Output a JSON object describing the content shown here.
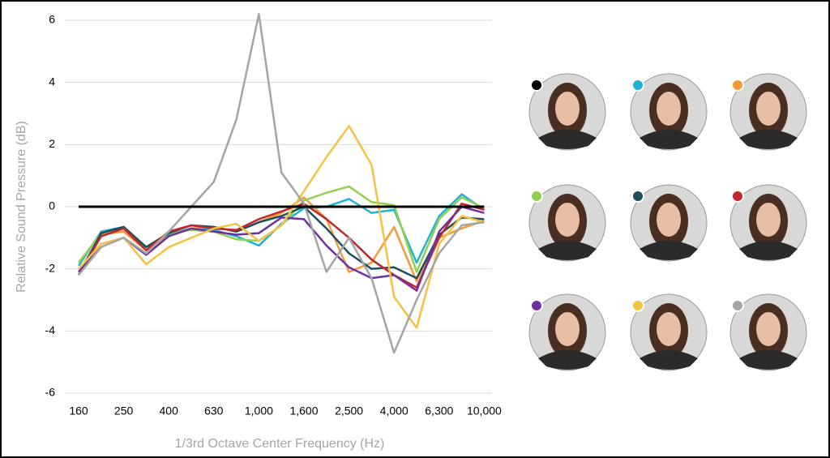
{
  "chart_data": {
    "type": "line",
    "y_label": "Relative Sound Pressure (dB)",
    "x_label": "1/3rd Octave Center Frequency (Hz)",
    "categories": [
      "160",
      null,
      "250",
      null,
      "400",
      null,
      "630",
      null,
      "1,000",
      null,
      "1,600",
      null,
      "2,500",
      null,
      "4,000",
      null,
      "6,300",
      null,
      "10,000"
    ],
    "ylim": [
      -6,
      6
    ],
    "yticks": [
      6,
      4,
      2,
      0,
      -2,
      -4,
      -6
    ],
    "grid": true,
    "series": [
      {
        "color": "#000000",
        "values": [
          0,
          0,
          0,
          0,
          0,
          0,
          0,
          0,
          0,
          0,
          0,
          0,
          0,
          0,
          0,
          0,
          0,
          0,
          0
        ]
      },
      {
        "color": "#1fb3d8",
        "values": [
          -1.9,
          -0.8,
          -0.65,
          -1.3,
          -0.9,
          -0.7,
          -0.75,
          -0.95,
          -1.25,
          -0.55,
          -0.05,
          0,
          0.25,
          -0.2,
          -0.1,
          -1.8,
          -0.3,
          0.4,
          -0.1
        ]
      },
      {
        "color": "#f29b38",
        "values": [
          -2.1,
          -0.9,
          -0.8,
          -1.4,
          -0.95,
          -0.7,
          -0.65,
          -0.8,
          -0.5,
          -0.2,
          0.3,
          -0.4,
          -2.1,
          -1.8,
          -0.65,
          -2.4,
          -1,
          -0.7,
          -0.45
        ]
      },
      {
        "color": "#92d050",
        "values": [
          -1.8,
          -0.85,
          -0.7,
          -1.3,
          -0.85,
          -0.75,
          -0.8,
          -1.05,
          -1.1,
          -0.6,
          0.2,
          0.45,
          0.65,
          0.15,
          0.05,
          -2.1,
          -0.4,
          0.3,
          -0.05
        ]
      },
      {
        "color": "#1f4e5f",
        "values": [
          -2.2,
          -0.85,
          -0.65,
          -1.3,
          -0.85,
          -0.6,
          -0.65,
          -0.8,
          -0.5,
          -0.3,
          0,
          -0.7,
          -1.5,
          -2,
          -1.95,
          -2.3,
          -0.9,
          -0.35,
          -0.4
        ]
      },
      {
        "color": "#c0282d",
        "values": [
          -2.2,
          -0.95,
          -0.7,
          -1.4,
          -0.8,
          -0.6,
          -0.7,
          -0.75,
          -0.4,
          -0.15,
          0.1,
          -0.4,
          -1,
          -1.7,
          -2.2,
          -2.6,
          -1,
          0.1,
          -0.1
        ]
      },
      {
        "color": "#7030a0",
        "values": [
          -2.1,
          -1.2,
          -1,
          -1.55,
          -0.95,
          -0.7,
          -0.8,
          -0.9,
          -0.85,
          -0.35,
          -0.4,
          -1.25,
          -1.95,
          -2.3,
          -2.2,
          -2.7,
          -0.8,
          0,
          -0.2
        ]
      },
      {
        "color": "#f5c242",
        "values": [
          -2,
          -1.2,
          -1,
          -1.85,
          -1.3,
          -1,
          -0.7,
          -0.55,
          -1.1,
          -0.6,
          0.5,
          1.6,
          2.6,
          1.35,
          -2.9,
          -3.9,
          -1.2,
          -0.3,
          -0.5
        ]
      },
      {
        "color": "#a5a5a5",
        "values": [
          -2.2,
          -1.3,
          -1,
          -1.5,
          -0.8,
          0,
          0.8,
          2.8,
          6.2,
          1.1,
          0.1,
          -2.1,
          -1,
          -2.3,
          -4.7,
          -3,
          -1.5,
          -0.6,
          -0.5
        ]
      }
    ]
  }
}
